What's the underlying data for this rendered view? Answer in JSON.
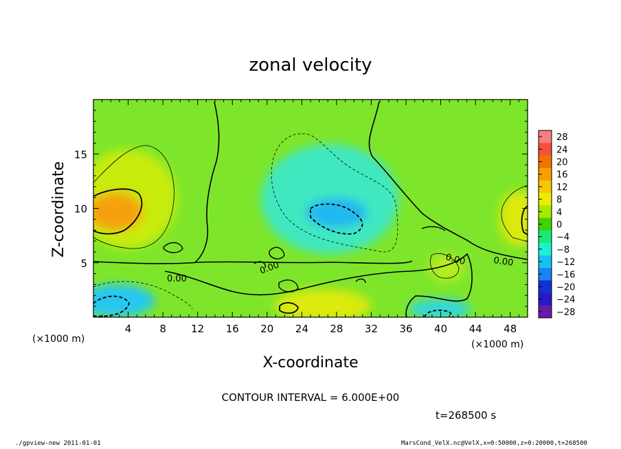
{
  "chart_data": {
    "type": "heatmap",
    "title": "zonal velocity",
    "xlabel": "X-coordinate",
    "ylabel": "Z-coordinate",
    "x_unit_note": "(×1000 m)",
    "xlim": [
      0,
      50
    ],
    "ylim": [
      0,
      20
    ],
    "x_ticks": [
      4,
      8,
      12,
      16,
      20,
      24,
      28,
      32,
      36,
      40,
      44,
      48
    ],
    "y_ticks": [
      5,
      10,
      15
    ],
    "contour_interval_text": "CONTOUR INTERVAL = 6.000E+00",
    "time_text": "t=268500 s",
    "contour_label": "0.00",
    "colorbar": {
      "levels": [
        28,
        24,
        20,
        16,
        12,
        8,
        4,
        0,
        -4,
        -8,
        -12,
        -16,
        -20,
        -24,
        -28
      ],
      "labels": [
        "28",
        "24",
        "20",
        "16",
        "12",
        "8",
        "4",
        "0",
        "−4",
        "−8",
        "−12",
        "−16",
        "−20",
        "−24",
        "−28"
      ],
      "colors": [
        "#f77e7e",
        "#f5503c",
        "#f47200",
        "#f7a000",
        "#f6c800",
        "#eaed00",
        "#a6e800",
        "#3fd400",
        "#1ee878",
        "#1cf2d0",
        "#18c2f0",
        "#1a84f0",
        "#1430d8",
        "#2818c8",
        "#6a1aa8"
      ]
    },
    "features": [
      {
        "label": "max",
        "x": 2.5,
        "z": 9.5,
        "value": 16
      },
      {
        "label": "min",
        "x": 28,
        "z": 9,
        "value": -11
      },
      {
        "label": "min",
        "x": 2,
        "z": 1.5,
        "value": -11
      },
      {
        "label": "max",
        "x": 22.5,
        "z": 0.8,
        "value": 12
      },
      {
        "label": "max",
        "x": 49.5,
        "z": 9.3,
        "value": 12
      },
      {
        "label": "min",
        "x": 40,
        "z": 0.5,
        "value": -10
      }
    ]
  },
  "footer": {
    "left": "./gpview-new   2011-01-01",
    "right": "MarsCond_VelX.nc@VelX,x=0:50000,z=0:20000,t=268500"
  }
}
